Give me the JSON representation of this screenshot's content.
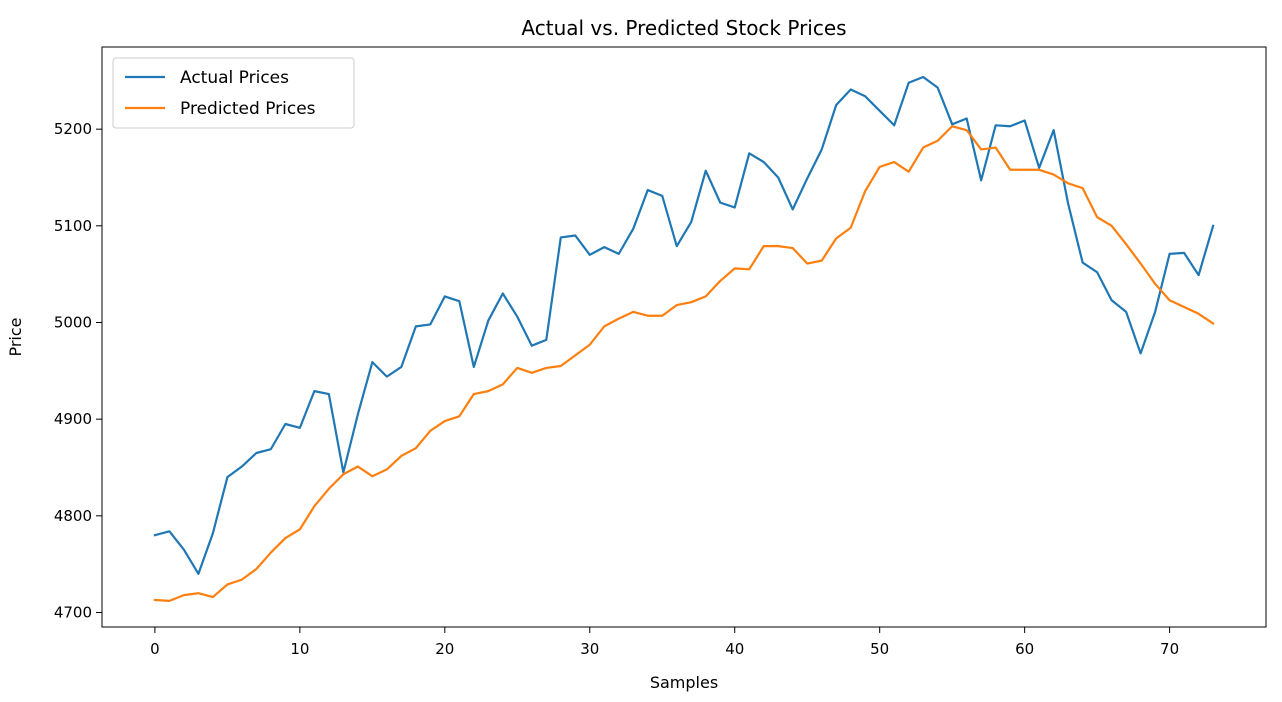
{
  "chart_data": {
    "type": "line",
    "title": "Actual vs. Predicted Stock Prices",
    "xlabel": "Samples",
    "ylabel": "Price",
    "xlim": [
      -3.65,
      76.65
    ],
    "ylim": [
      4685,
      5285
    ],
    "xticks": [
      0,
      10,
      20,
      30,
      40,
      50,
      60,
      70
    ],
    "yticks": [
      4700,
      4800,
      4900,
      5000,
      5100,
      5200
    ],
    "grid": false,
    "legend_position": "top-left",
    "series": [
      {
        "name": "Actual Prices",
        "color": "#1f77b4",
        "values": [
          4780,
          4784,
          4765,
          4740,
          4782,
          4840,
          4851,
          4865,
          4869,
          4895,
          4891,
          4929,
          4926,
          4845,
          4905,
          4959,
          4944,
          4954,
          4996,
          4998,
          5027,
          5022,
          4954,
          5002,
          5030,
          5006,
          4976,
          4982,
          5088,
          5090,
          5070,
          5078,
          5071,
          5097,
          5137,
          5131,
          5079,
          5104,
          5157,
          5124,
          5119,
          5175,
          5166,
          5150,
          5117,
          5149,
          5179,
          5225,
          5241,
          5234,
          5219,
          5204,
          5248,
          5254,
          5243,
          5205,
          5211,
          5147,
          5204,
          5203,
          5209,
          5160,
          5199,
          5123,
          5062,
          5052,
          5023,
          5011,
          4968,
          5011,
          5071,
          5072,
          5049,
          5100
        ]
      },
      {
        "name": "Predicted Prices",
        "color": "#ff7f0e",
        "values": [
          4713,
          4712,
          4718,
          4720,
          4716,
          4729,
          4734,
          4745,
          4762,
          4777,
          4786,
          4810,
          4828,
          4843,
          4851,
          4841,
          4848,
          4862,
          4870,
          4888,
          4898,
          4903,
          4926,
          4929,
          4936,
          4953,
          4948,
          4953,
          4955,
          4966,
          4977,
          4996,
          5004,
          5011,
          5007,
          5007,
          5018,
          5021,
          5027,
          5043,
          5056,
          5055,
          5079,
          5079,
          5077,
          5061,
          5064,
          5087,
          5098,
          5136,
          5161,
          5166,
          5156,
          5181,
          5188,
          5203,
          5199,
          5179,
          5181,
          5158,
          5158,
          5158,
          5153,
          5144,
          5139,
          5109,
          5100,
          5081,
          5061,
          5040,
          5023,
          5016,
          5009,
          4999
        ]
      }
    ]
  }
}
